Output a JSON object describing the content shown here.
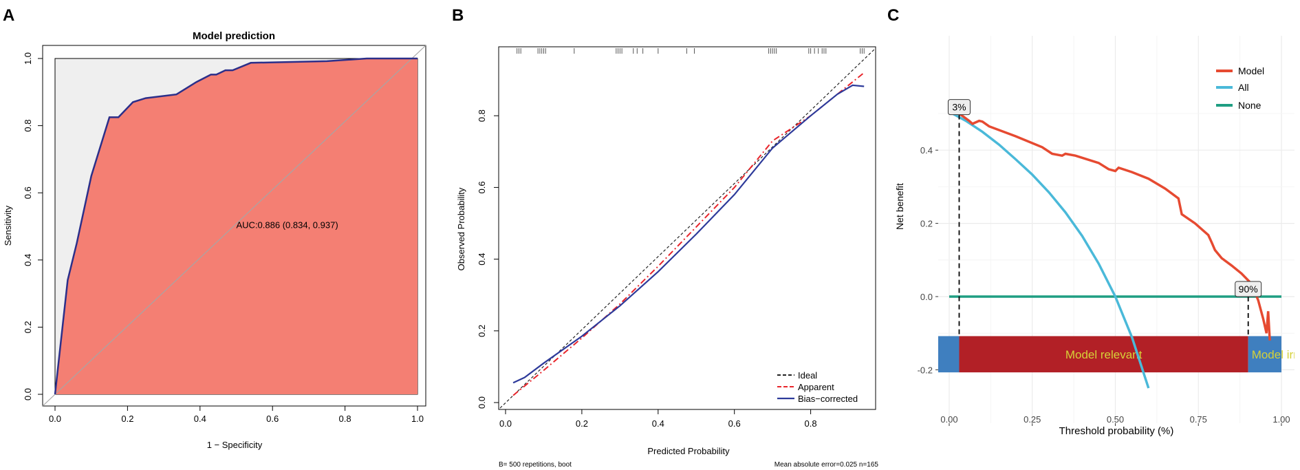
{
  "panel_letters": [
    "A",
    "B",
    "C"
  ],
  "colors": {
    "roc_fill": "#f47f73",
    "roc_bg": "#efefef",
    "roc_curve": "#2b2f8a",
    "diag": "#a6a6a6",
    "apparent": "#e8242a",
    "bias": "#2d3a9a",
    "ideal": "#222222",
    "model": "#e64a31",
    "all": "#4ab9d9",
    "none": "#1f9e82",
    "relevant": "#b22026",
    "irrelevant": "#3f7fbf",
    "band_text": "#d6d138",
    "grid": "#ebebeb"
  },
  "chart_data": [
    {
      "type": "area",
      "panel": "A",
      "title": "Model prediction",
      "xlabel": "1 − Specificity",
      "ylabel": "Sensitivity",
      "xlim": [
        0,
        1
      ],
      "ylim": [
        0,
        1
      ],
      "xticks": [
        "0.0",
        "0.2",
        "0.4",
        "0.6",
        "0.8",
        "1.0"
      ],
      "yticks": [
        "0.0",
        "0.2",
        "0.4",
        "0.6",
        "0.8",
        "1.0"
      ],
      "annotation": "AUC:0.886 (0.834, 0.937)",
      "roc": [
        [
          0,
          0
        ],
        [
          0.035,
          0.34
        ],
        [
          0.06,
          0.45
        ],
        [
          0.1,
          0.65
        ],
        [
          0.15,
          0.825
        ],
        [
          0.175,
          0.825
        ],
        [
          0.215,
          0.87
        ],
        [
          0.25,
          0.882
        ],
        [
          0.335,
          0.893
        ],
        [
          0.39,
          0.93
        ],
        [
          0.43,
          0.952
        ],
        [
          0.445,
          0.952
        ],
        [
          0.47,
          0.965
        ],
        [
          0.49,
          0.965
        ],
        [
          0.54,
          0.987
        ],
        [
          0.75,
          0.992
        ],
        [
          0.86,
          1
        ],
        [
          1,
          1
        ]
      ]
    },
    {
      "type": "line",
      "panel": "B",
      "xlabel": "Predicted Probability",
      "ylabel": "Observed Probability",
      "xlim": [
        0,
        0.95
      ],
      "ylim": [
        0,
        0.93
      ],
      "xticks": [
        "0.0",
        "0.2",
        "0.4",
        "0.6",
        "0.8"
      ],
      "yticks": [
        "0.0",
        "0.2",
        "0.4",
        "0.6",
        "0.8"
      ],
      "footnote_left": "B= 500 repetitions, boot",
      "footnote_right": "Mean absolute error=0.025 n=165",
      "legend": [
        "Ideal",
        "Apparent",
        "Bias−corrected"
      ],
      "rug": [
        0.03,
        0.035,
        0.04,
        0.085,
        0.09,
        0.095,
        0.1,
        0.105,
        0.18,
        0.29,
        0.295,
        0.3,
        0.305,
        0.335,
        0.345,
        0.36,
        0.4,
        0.475,
        0.495,
        0.69,
        0.695,
        0.7,
        0.705,
        0.71,
        0.795,
        0.8,
        0.81,
        0.82,
        0.83,
        0.835,
        0.84,
        0.93,
        0.935,
        0.94
      ],
      "series": [
        {
          "name": "Apparent",
          "points": [
            [
              0.02,
              0.02
            ],
            [
              0.1,
              0.09
            ],
            [
              0.2,
              0.18
            ],
            [
              0.3,
              0.275
            ],
            [
              0.4,
              0.38
            ],
            [
              0.5,
              0.49
            ],
            [
              0.6,
              0.6
            ],
            [
              0.7,
              0.73
            ],
            [
              0.8,
              0.8
            ],
            [
              0.87,
              0.86
            ],
            [
              0.94,
              0.92
            ]
          ]
        },
        {
          "name": "Bias−corrected",
          "points": [
            [
              0.02,
              0.055
            ],
            [
              0.05,
              0.07
            ],
            [
              0.1,
              0.11
            ],
            [
              0.2,
              0.185
            ],
            [
              0.3,
              0.27
            ],
            [
              0.4,
              0.365
            ],
            [
              0.5,
              0.47
            ],
            [
              0.6,
              0.58
            ],
            [
              0.7,
              0.71
            ],
            [
              0.8,
              0.8
            ],
            [
              0.87,
              0.86
            ],
            [
              0.91,
              0.885
            ],
            [
              0.94,
              0.882
            ]
          ]
        }
      ]
    },
    {
      "type": "line",
      "panel": "C",
      "xlabel": "Threshold probability (%)",
      "ylabel": "Net benefit",
      "xlim": [
        -0.04,
        1.0
      ],
      "ylim": [
        -0.22,
        0.53
      ],
      "xticks": [
        "0.00",
        "0.25",
        "0.50",
        "0.75",
        "1.00"
      ],
      "yticks": [
        "-0.2",
        "0.0",
        "0.2",
        "0.4"
      ],
      "legend": [
        "Model",
        "All",
        "None"
      ],
      "threshold_labels": [
        "3%",
        "90%"
      ],
      "thresholds": [
        0.03,
        0.9
      ],
      "band": {
        "y_top": -0.108,
        "y_bottom": -0.207,
        "relevant_label": "Model relevant",
        "irrelevant_label": "Model irreleva"
      },
      "series": [
        {
          "name": "Model",
          "points": [
            [
              0.03,
              0.5
            ],
            [
              0.06,
              0.48
            ],
            [
              0.07,
              0.472
            ],
            [
              0.09,
              0.48
            ],
            [
              0.1,
              0.478
            ],
            [
              0.12,
              0.465
            ],
            [
              0.2,
              0.438
            ],
            [
              0.28,
              0.408
            ],
            [
              0.31,
              0.39
            ],
            [
              0.34,
              0.385
            ],
            [
              0.35,
              0.39
            ],
            [
              0.38,
              0.385
            ],
            [
              0.45,
              0.365
            ],
            [
              0.48,
              0.348
            ],
            [
              0.5,
              0.343
            ],
            [
              0.51,
              0.352
            ],
            [
              0.55,
              0.34
            ],
            [
              0.6,
              0.322
            ],
            [
              0.65,
              0.295
            ],
            [
              0.69,
              0.268
            ],
            [
              0.7,
              0.225
            ],
            [
              0.74,
              0.2
            ],
            [
              0.78,
              0.168
            ],
            [
              0.79,
              0.148
            ],
            [
              0.8,
              0.127
            ],
            [
              0.82,
              0.105
            ],
            [
              0.85,
              0.085
            ],
            [
              0.88,
              0.063
            ],
            [
              0.91,
              0.035
            ],
            [
              0.93,
              -0.01
            ],
            [
              0.945,
              -0.06
            ],
            [
              0.955,
              -0.1
            ],
            [
              0.96,
              -0.04
            ],
            [
              0.965,
              -0.12
            ]
          ]
        },
        {
          "name": "All",
          "points": [
            [
              0.01,
              0.5
            ],
            [
              0.05,
              0.48
            ],
            [
              0.1,
              0.45
            ],
            [
              0.15,
              0.415
            ],
            [
              0.2,
              0.375
            ],
            [
              0.25,
              0.333
            ],
            [
              0.3,
              0.285
            ],
            [
              0.35,
              0.23
            ],
            [
              0.4,
              0.166
            ],
            [
              0.45,
              0.09
            ],
            [
              0.5,
              0.0
            ],
            [
              0.55,
              -0.111
            ],
            [
              0.6,
              -0.25
            ]
          ]
        },
        {
          "name": "None",
          "points": [
            [
              0,
              0
            ],
            [
              1,
              0
            ]
          ]
        }
      ]
    }
  ]
}
